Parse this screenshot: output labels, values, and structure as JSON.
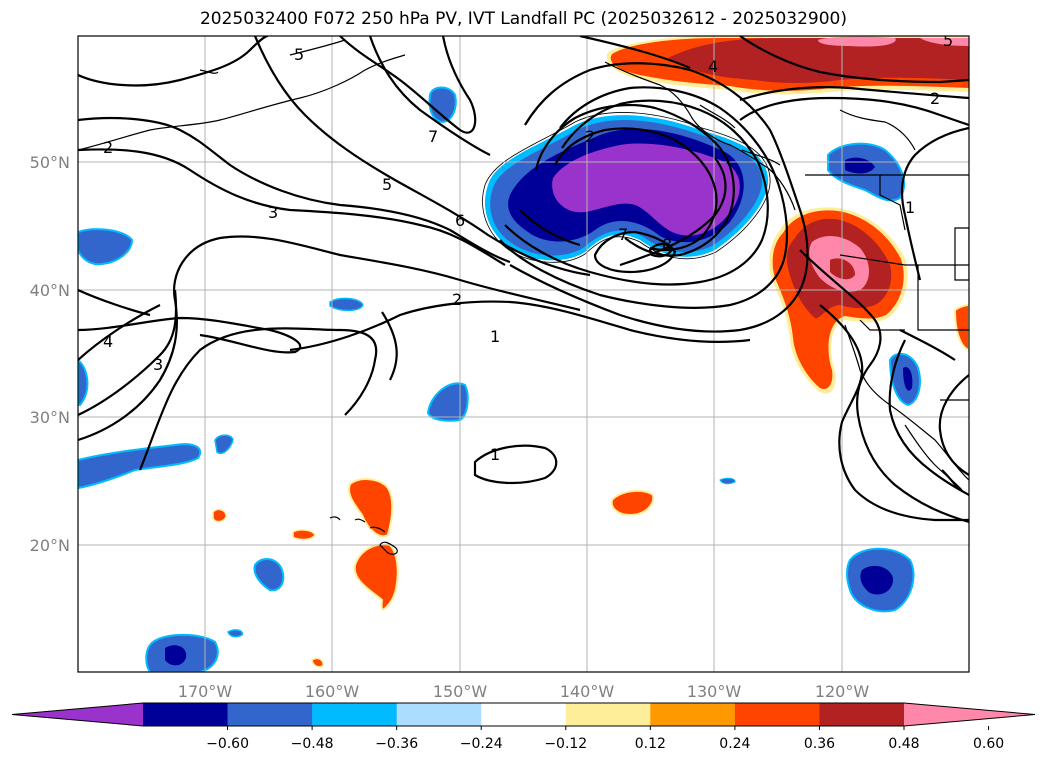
{
  "title": "2025032400 F072 250 hPa PV, IVT Landfall PC (2025032612 - 2025032900)",
  "map": {
    "projection": "equirectangular",
    "lon_range": [
      -180,
      -110
    ],
    "lat_range": [
      10,
      60
    ],
    "lat_ticks": [
      "20°N",
      "30°N",
      "40°N",
      "50°N"
    ],
    "lon_ticks": [
      "170°W",
      "160°W",
      "150°W",
      "140°W",
      "130°W",
      "120°W"
    ],
    "gridlines": true
  },
  "pv_contour_labels": [
    "5",
    "2",
    "7",
    "3",
    "5",
    "6",
    "7",
    "8",
    "2",
    "1",
    "4",
    "3",
    "1",
    "4",
    "2",
    "1",
    "2",
    "5"
  ],
  "colorbar": {
    "colors": [
      "#9933cc",
      "#000099",
      "#3366cc",
      "#00bbff",
      "#aaddff",
      "#ffffff",
      "#ffee99",
      "#ff9900",
      "#ff4400",
      "#b22222",
      "#ff88aa"
    ],
    "tick_labels": [
      "−0.60",
      "−0.48",
      "−0.36",
      "−0.24",
      "−0.12",
      "0.12",
      "0.24",
      "0.36",
      "0.48",
      "0.60"
    ],
    "extend": "both"
  }
}
